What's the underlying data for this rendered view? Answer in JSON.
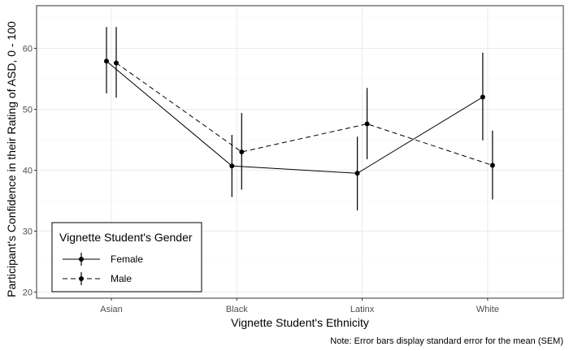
{
  "chart_data": {
    "type": "line",
    "xlabel": "Vignette Student's Ethnicity",
    "ylabel": "Participant's Confidence in their Rating of ASD, 0 - 100",
    "caption": "Note: Error bars display standard error for the mean (SEM)",
    "categories": [
      "Asian",
      "Black",
      "Latinx",
      "White"
    ],
    "ylim": [
      20,
      100
    ],
    "yticks": [
      20,
      30,
      40,
      50,
      60
    ],
    "grid": true,
    "legend": {
      "title": "Vignette Student's Gender",
      "position": "bottom-left"
    },
    "series": [
      {
        "name": "Female",
        "linestyle": "solid",
        "values": [
          57.9,
          40.7,
          39.5,
          52.0
        ],
        "error_low": [
          52.6,
          35.6,
          33.4,
          44.9
        ],
        "error_high": [
          63.5,
          45.8,
          45.5,
          59.3
        ]
      },
      {
        "name": "Male",
        "linestyle": "dashed",
        "values": [
          57.6,
          43.0,
          47.6,
          40.8
        ],
        "error_low": [
          51.9,
          36.8,
          41.8,
          35.2
        ],
        "error_high": [
          63.5,
          49.4,
          53.5,
          46.5
        ]
      }
    ]
  }
}
